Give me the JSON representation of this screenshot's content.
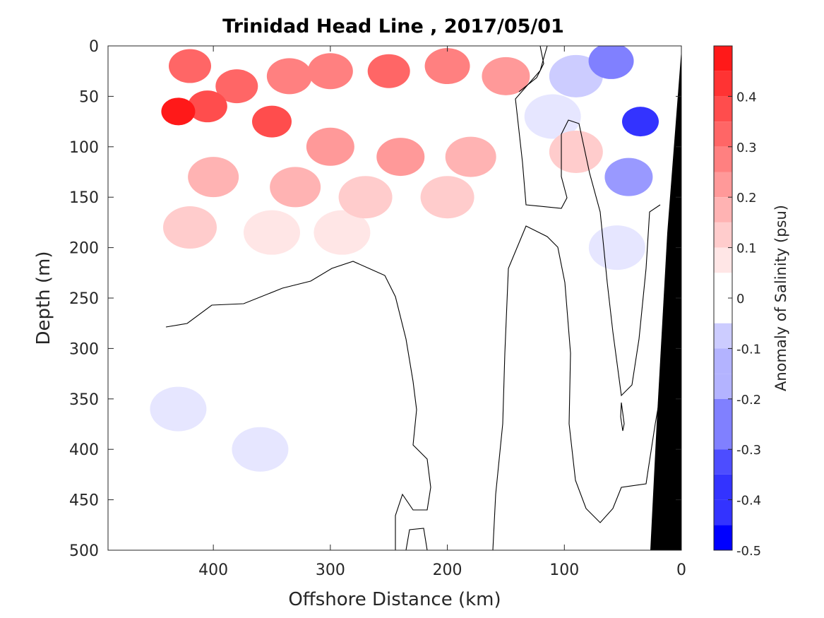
{
  "chart_data": {
    "type": "heatmap",
    "title": "Trinidad Head Line , 2017/05/01",
    "xlabel": "Offshore Distance (km)",
    "ylabel": "Depth (m)",
    "xlim": [
      490,
      0
    ],
    "ylim": [
      500,
      0
    ],
    "x_ticks": [
      "400",
      "300",
      "200",
      "100",
      "0"
    ],
    "y_ticks": [
      "0",
      "50",
      "100",
      "150",
      "200",
      "250",
      "300",
      "350",
      "400",
      "450",
      "500"
    ],
    "colorbar": {
      "label": "Anomaly of Salinity (psu)",
      "range": [
        -0.5,
        0.5
      ],
      "step": 0.05,
      "ticks": [
        "0.4",
        "0.3",
        "0.2",
        "0.1",
        "0",
        "-0.1",
        "-0.2",
        "-0.3",
        "-0.4",
        "-0.5"
      ],
      "positive_color": "#ff0000",
      "negative_color": "#0000ff",
      "zero_color": "#ffffff"
    },
    "cells": [
      {
        "x": 430,
        "y": 65,
        "value": 0.45
      },
      {
        "x": 405,
        "y": 60,
        "value": 0.35
      },
      {
        "x": 420,
        "y": 20,
        "value": 0.3
      },
      {
        "x": 380,
        "y": 40,
        "value": 0.3
      },
      {
        "x": 350,
        "y": 75,
        "value": 0.35
      },
      {
        "x": 335,
        "y": 30,
        "value": 0.25
      },
      {
        "x": 300,
        "y": 25,
        "value": 0.25
      },
      {
        "x": 250,
        "y": 25,
        "value": 0.3
      },
      {
        "x": 200,
        "y": 20,
        "value": 0.25
      },
      {
        "x": 150,
        "y": 30,
        "value": 0.2
      },
      {
        "x": 300,
        "y": 100,
        "value": 0.2
      },
      {
        "x": 240,
        "y": 110,
        "value": 0.2
      },
      {
        "x": 180,
        "y": 110,
        "value": 0.15
      },
      {
        "x": 400,
        "y": 130,
        "value": 0.15
      },
      {
        "x": 330,
        "y": 140,
        "value": 0.15
      },
      {
        "x": 270,
        "y": 150,
        "value": 0.1
      },
      {
        "x": 200,
        "y": 150,
        "value": 0.1
      },
      {
        "x": 420,
        "y": 180,
        "value": 0.1
      },
      {
        "x": 350,
        "y": 185,
        "value": 0.05
      },
      {
        "x": 290,
        "y": 185,
        "value": 0.05
      },
      {
        "x": 90,
        "y": 30,
        "value": -0.1
      },
      {
        "x": 60,
        "y": 15,
        "value": -0.25
      },
      {
        "x": 35,
        "y": 75,
        "value": -0.4
      },
      {
        "x": 45,
        "y": 130,
        "value": -0.2
      },
      {
        "x": 55,
        "y": 200,
        "value": -0.05
      },
      {
        "x": 110,
        "y": 70,
        "value": -0.05
      },
      {
        "x": 90,
        "y": 105,
        "value": 0.1
      },
      {
        "x": 430,
        "y": 360,
        "value": -0.05
      },
      {
        "x": 360,
        "y": 400,
        "value": -0.05
      }
    ]
  }
}
